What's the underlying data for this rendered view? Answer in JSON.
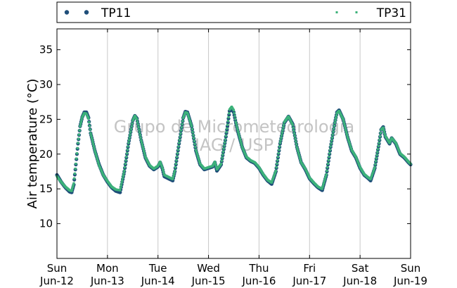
{
  "chart_data": {
    "type": "scatter",
    "ylabel": "Air temperature (°C)",
    "xlabel": "",
    "xlim": [
      "2015-06-12",
      "2015-06-19"
    ],
    "ylim": [
      5,
      38
    ],
    "yticks": [
      10,
      15,
      20,
      25,
      30,
      35
    ],
    "xticks": [
      {
        "date": "2015-06-12",
        "day": "Sun",
        "date_label": "Jun-12"
      },
      {
        "date": "2015-06-13",
        "day": "Mon",
        "date_label": "Jun-13"
      },
      {
        "date": "2015-06-14",
        "day": "Tue",
        "date_label": "Jun-14"
      },
      {
        "date": "2015-06-15",
        "day": "Wed",
        "date_label": "Jun-15"
      },
      {
        "date": "2015-06-16",
        "day": "Thu",
        "date_label": "Jun-16"
      },
      {
        "date": "2015-06-17",
        "day": "Fri",
        "date_label": "Jun-17"
      },
      {
        "date": "2015-06-18",
        "day": "Sat",
        "date_label": "Jun-18"
      },
      {
        "date": "2015-06-19",
        "day": "Sun",
        "date_label": "Jun-19"
      }
    ],
    "grid": "vertical",
    "legend_placement": "top",
    "series": [
      {
        "name": "TP11",
        "color": "#1f4e79",
        "marker": "circle",
        "points": [
          [
            "2015-06-12 00:00",
            17.0
          ],
          [
            "2015-06-12 02:00",
            16.0
          ],
          [
            "2015-06-12 04:00",
            15.2
          ],
          [
            "2015-06-12 06:00",
            14.6
          ],
          [
            "2015-06-12 07:00",
            14.5
          ],
          [
            "2015-06-12 08:00",
            15.6
          ],
          [
            "2015-06-12 09:00",
            18.5
          ],
          [
            "2015-06-12 10:00",
            21.5
          ],
          [
            "2015-06-12 11:00",
            24.0
          ],
          [
            "2015-06-12 12:00",
            25.3
          ],
          [
            "2015-06-12 13:00",
            26.0
          ],
          [
            "2015-06-12 14:00",
            26.0
          ],
          [
            "2015-06-12 15:00",
            25.2
          ],
          [
            "2015-06-12 16:00",
            23.0
          ],
          [
            "2015-06-12 18:00",
            20.5
          ],
          [
            "2015-06-12 20:00",
            18.5
          ],
          [
            "2015-06-12 22:00",
            17.0
          ],
          [
            "2015-06-13 00:00",
            16.0
          ],
          [
            "2015-06-13 02:00",
            15.2
          ],
          [
            "2015-06-13 04:00",
            14.7
          ],
          [
            "2015-06-13 06:00",
            14.5
          ],
          [
            "2015-06-13 08:00",
            17.5
          ],
          [
            "2015-06-13 10:00",
            21.5
          ],
          [
            "2015-06-13 12:00",
            24.8
          ],
          [
            "2015-06-13 13:00",
            25.5
          ],
          [
            "2015-06-13 14:00",
            25.1
          ],
          [
            "2015-06-13 16:00",
            22.0
          ],
          [
            "2015-06-13 18:00",
            19.5
          ],
          [
            "2015-06-13 20:00",
            18.3
          ],
          [
            "2015-06-13 22:00",
            17.8
          ],
          [
            "2015-06-14 00:00",
            18.2
          ],
          [
            "2015-06-14 01:00",
            18.8
          ],
          [
            "2015-06-14 02:00",
            18.0
          ],
          [
            "2015-06-14 03:00",
            16.8
          ],
          [
            "2015-06-14 05:00",
            16.5
          ],
          [
            "2015-06-14 07:00",
            16.2
          ],
          [
            "2015-06-14 08:00",
            17.5
          ],
          [
            "2015-06-14 10:00",
            21.5
          ],
          [
            "2015-06-14 12:00",
            25.2
          ],
          [
            "2015-06-14 13:00",
            26.1
          ],
          [
            "2015-06-14 14:00",
            26.0
          ],
          [
            "2015-06-14 16:00",
            24.0
          ],
          [
            "2015-06-14 18:00",
            20.5
          ],
          [
            "2015-06-14 20:00",
            18.5
          ],
          [
            "2015-06-14 22:00",
            17.8
          ],
          [
            "2015-06-15 00:00",
            18.0
          ],
          [
            "2015-06-15 02:00",
            18.2
          ],
          [
            "2015-06-15 03:00",
            18.8
          ],
          [
            "2015-06-15 04:00",
            17.6
          ],
          [
            "2015-06-15 06:00",
            18.5
          ],
          [
            "2015-06-15 08:00",
            22.0
          ],
          [
            "2015-06-15 09:00",
            24.0
          ],
          [
            "2015-06-15 10:00",
            26.2
          ],
          [
            "2015-06-15 11:00",
            26.5
          ],
          [
            "2015-06-15 12:00",
            26.0
          ],
          [
            "2015-06-15 13:00",
            24.5
          ],
          [
            "2015-06-15 14:00",
            23.2
          ],
          [
            "2015-06-15 16:00",
            21.0
          ],
          [
            "2015-06-15 18:00",
            19.5
          ],
          [
            "2015-06-15 20:00",
            19.0
          ],
          [
            "2015-06-15 22:00",
            18.7
          ],
          [
            "2015-06-16 00:00",
            18.0
          ],
          [
            "2015-06-16 02:00",
            17.0
          ],
          [
            "2015-06-16 04:00",
            16.2
          ],
          [
            "2015-06-16 06:00",
            15.7
          ],
          [
            "2015-06-16 08:00",
            17.5
          ],
          [
            "2015-06-16 10:00",
            21.5
          ],
          [
            "2015-06-16 12:00",
            24.5
          ],
          [
            "2015-06-16 14:00",
            25.4
          ],
          [
            "2015-06-16 16:00",
            24.3
          ],
          [
            "2015-06-16 18:00",
            21.0
          ],
          [
            "2015-06-16 20:00",
            18.8
          ],
          [
            "2015-06-16 22:00",
            17.8
          ],
          [
            "2015-06-17 00:00",
            16.5
          ],
          [
            "2015-06-17 02:00",
            15.8
          ],
          [
            "2015-06-17 04:00",
            15.2
          ],
          [
            "2015-06-17 06:00",
            14.8
          ],
          [
            "2015-06-17 08:00",
            17.0
          ],
          [
            "2015-06-17 10:00",
            21.0
          ],
          [
            "2015-06-17 12:00",
            24.5
          ],
          [
            "2015-06-17 13:00",
            26.0
          ],
          [
            "2015-06-17 14:00",
            26.3
          ],
          [
            "2015-06-17 16:00",
            25.0
          ],
          [
            "2015-06-17 18:00",
            22.5
          ],
          [
            "2015-06-17 20:00",
            20.5
          ],
          [
            "2015-06-17 22:00",
            19.5
          ],
          [
            "2015-06-18 00:00",
            18.0
          ],
          [
            "2015-06-18 02:00",
            17.0
          ],
          [
            "2015-06-18 04:00",
            16.5
          ],
          [
            "2015-06-18 05:00",
            16.2
          ],
          [
            "2015-06-18 07:00",
            18.0
          ],
          [
            "2015-06-18 09:00",
            21.5
          ],
          [
            "2015-06-18 10:00",
            23.5
          ],
          [
            "2015-06-18 11:00",
            23.9
          ],
          [
            "2015-06-18 12:00",
            22.5
          ],
          [
            "2015-06-18 14:00",
            21.5
          ],
          [
            "2015-06-18 15:00",
            22.3
          ],
          [
            "2015-06-18 17:00",
            21.5
          ],
          [
            "2015-06-18 19:00",
            20.0
          ],
          [
            "2015-06-18 21:00",
            19.5
          ],
          [
            "2015-06-18 23:00",
            18.8
          ],
          [
            "2015-06-19 00:00",
            18.5
          ]
        ]
      },
      {
        "name": "TP31",
        "color": "#3cb27a",
        "marker": "square",
        "points": [
          [
            "2015-06-12 00:00",
            16.8
          ],
          [
            "2015-06-12 02:00",
            16.0
          ],
          [
            "2015-06-12 04:00",
            15.3
          ],
          [
            "2015-06-12 06:00",
            14.8
          ],
          [
            "2015-06-12 07:00",
            14.7
          ],
          [
            "2015-06-12 08:00",
            15.8
          ],
          [
            "2015-06-12 09:00",
            18.6
          ],
          [
            "2015-06-12 10:00",
            21.6
          ],
          [
            "2015-06-12 11:00",
            24.0
          ],
          [
            "2015-06-12 12:00",
            25.3
          ],
          [
            "2015-06-12 13:00",
            25.9
          ],
          [
            "2015-06-12 14:00",
            25.8
          ],
          [
            "2015-06-12 15:00",
            25.1
          ],
          [
            "2015-06-12 16:00",
            23.0
          ],
          [
            "2015-06-12 18:00",
            20.5
          ],
          [
            "2015-06-12 20:00",
            18.4
          ],
          [
            "2015-06-12 22:00",
            17.0
          ],
          [
            "2015-06-13 00:00",
            16.1
          ],
          [
            "2015-06-13 02:00",
            15.3
          ],
          [
            "2015-06-13 04:00",
            14.9
          ],
          [
            "2015-06-13 06:00",
            14.8
          ],
          [
            "2015-06-13 08:00",
            17.6
          ],
          [
            "2015-06-13 10:00",
            21.6
          ],
          [
            "2015-06-13 12:00",
            24.8
          ],
          [
            "2015-06-13 13:00",
            25.5
          ],
          [
            "2015-06-13 14:00",
            25.0
          ],
          [
            "2015-06-13 16:00",
            22.0
          ],
          [
            "2015-06-13 18:00",
            19.6
          ],
          [
            "2015-06-13 20:00",
            18.4
          ],
          [
            "2015-06-13 22:00",
            17.9
          ],
          [
            "2015-06-14 00:00",
            18.3
          ],
          [
            "2015-06-14 01:00",
            18.9
          ],
          [
            "2015-06-14 02:00",
            18.1
          ],
          [
            "2015-06-14 03:00",
            17.0
          ],
          [
            "2015-06-14 05:00",
            16.7
          ],
          [
            "2015-06-14 07:00",
            16.4
          ],
          [
            "2015-06-14 08:00",
            17.6
          ],
          [
            "2015-06-14 10:00",
            21.6
          ],
          [
            "2015-06-14 12:00",
            25.2
          ],
          [
            "2015-06-14 13:00",
            26.0
          ],
          [
            "2015-06-14 14:00",
            25.9
          ],
          [
            "2015-06-14 16:00",
            24.0
          ],
          [
            "2015-06-14 18:00",
            20.6
          ],
          [
            "2015-06-14 20:00",
            18.6
          ],
          [
            "2015-06-14 22:00",
            17.9
          ],
          [
            "2015-06-15 00:00",
            18.1
          ],
          [
            "2015-06-15 02:00",
            18.3
          ],
          [
            "2015-06-15 03:00",
            18.9
          ],
          [
            "2015-06-15 04:00",
            17.8
          ],
          [
            "2015-06-15 06:00",
            18.6
          ],
          [
            "2015-06-15 08:00",
            22.1
          ],
          [
            "2015-06-15 09:00",
            24.2
          ],
          [
            "2015-06-15 10:00",
            26.4
          ],
          [
            "2015-06-15 11:00",
            26.8
          ],
          [
            "2015-06-15 12:00",
            26.3
          ],
          [
            "2015-06-15 13:00",
            24.6
          ],
          [
            "2015-06-15 14:00",
            23.3
          ],
          [
            "2015-06-15 16:00",
            21.0
          ],
          [
            "2015-06-15 18:00",
            19.6
          ],
          [
            "2015-06-15 20:00",
            19.1
          ],
          [
            "2015-06-15 22:00",
            18.8
          ],
          [
            "2015-06-16 00:00",
            18.1
          ],
          [
            "2015-06-16 02:00",
            17.1
          ],
          [
            "2015-06-16 04:00",
            16.3
          ],
          [
            "2015-06-16 06:00",
            15.9
          ],
          [
            "2015-06-16 08:00",
            17.6
          ],
          [
            "2015-06-16 10:00",
            21.6
          ],
          [
            "2015-06-16 12:00",
            24.6
          ],
          [
            "2015-06-16 14:00",
            25.4
          ],
          [
            "2015-06-16 16:00",
            24.2
          ],
          [
            "2015-06-16 18:00",
            21.0
          ],
          [
            "2015-06-16 20:00",
            18.8
          ],
          [
            "2015-06-16 22:00",
            17.9
          ],
          [
            "2015-06-17 00:00",
            16.6
          ],
          [
            "2015-06-17 02:00",
            15.9
          ],
          [
            "2015-06-17 04:00",
            15.3
          ],
          [
            "2015-06-17 06:00",
            15.0
          ],
          [
            "2015-06-17 08:00",
            17.1
          ],
          [
            "2015-06-17 10:00",
            21.1
          ],
          [
            "2015-06-17 12:00",
            24.5
          ],
          [
            "2015-06-17 13:00",
            25.9
          ],
          [
            "2015-06-17 14:00",
            26.2
          ],
          [
            "2015-06-17 16:00",
            25.0
          ],
          [
            "2015-06-17 18:00",
            22.5
          ],
          [
            "2015-06-17 20:00",
            20.6
          ],
          [
            "2015-06-17 22:00",
            19.6
          ],
          [
            "2015-06-18 00:00",
            18.1
          ],
          [
            "2015-06-18 02:00",
            17.1
          ],
          [
            "2015-06-18 04:00",
            16.6
          ],
          [
            "2015-06-18 05:00",
            16.4
          ],
          [
            "2015-06-18 07:00",
            18.1
          ],
          [
            "2015-06-18 09:00",
            21.6
          ],
          [
            "2015-06-18 10:00",
            23.5
          ],
          [
            "2015-06-18 11:00",
            23.8
          ],
          [
            "2015-06-18 12:00",
            22.6
          ],
          [
            "2015-06-18 14:00",
            21.6
          ],
          [
            "2015-06-18 15:00",
            22.3
          ],
          [
            "2015-06-18 17:00",
            21.6
          ],
          [
            "2015-06-18 19:00",
            20.1
          ],
          [
            "2015-06-18 21:00",
            19.6
          ],
          [
            "2015-06-18 23:00",
            18.9
          ],
          [
            "2015-06-19 00:00",
            18.6
          ]
        ]
      }
    ],
    "watermark": [
      "Grupo de Micrometeorologia",
      "IAG / USP"
    ]
  }
}
